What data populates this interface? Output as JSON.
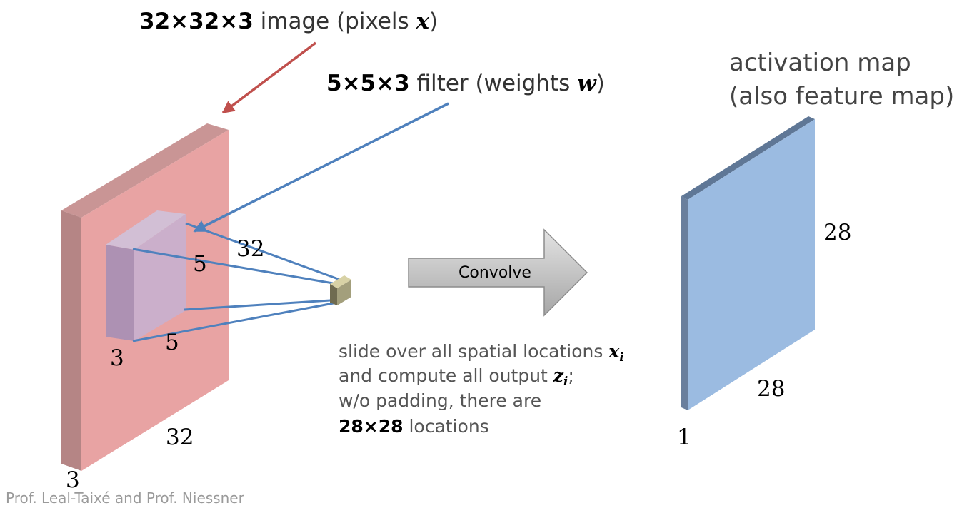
{
  "image_label": {
    "dims": "32×32×3",
    "text": " image (pixels ",
    "var": "x",
    "close": ")"
  },
  "filter_label": {
    "dims": "5×5×3",
    "text": " filter (weights ",
    "var": "w",
    "close": ")"
  },
  "activation_label": {
    "line1": "activation map",
    "line2": "(also feature map)"
  },
  "convolve_label": "Convolve",
  "image_dims": {
    "width": "32",
    "height": "32",
    "depth": "3"
  },
  "filter_dims": {
    "width": "5",
    "height": "5",
    "depth": "3"
  },
  "output_dims": {
    "width": "28",
    "height": "28",
    "depth": "1"
  },
  "description": {
    "line1_text": "slide over all spatial locations ",
    "line1_var": "x",
    "line1_sub": "i",
    "line2_text": "and compute all output ",
    "line2_var": "z",
    "line2_sub": "i",
    "line2_end": ";",
    "line3_text": "w/o padding, there are",
    "line4_bold": "28×28",
    "line4_text": " locations"
  },
  "credit": "Prof. Leal-Taixé and Prof. Niessner",
  "colors": {
    "image_front": "#e8a3a3",
    "image_side": "#b58585",
    "image_top": "#c99595",
    "filter_front": "#c6b2d2",
    "output_front": "#9bbbe1",
    "output_side": "#6a7f9d",
    "arrow_red": "#c0504d",
    "arrow_blue": "#4f81bd"
  }
}
